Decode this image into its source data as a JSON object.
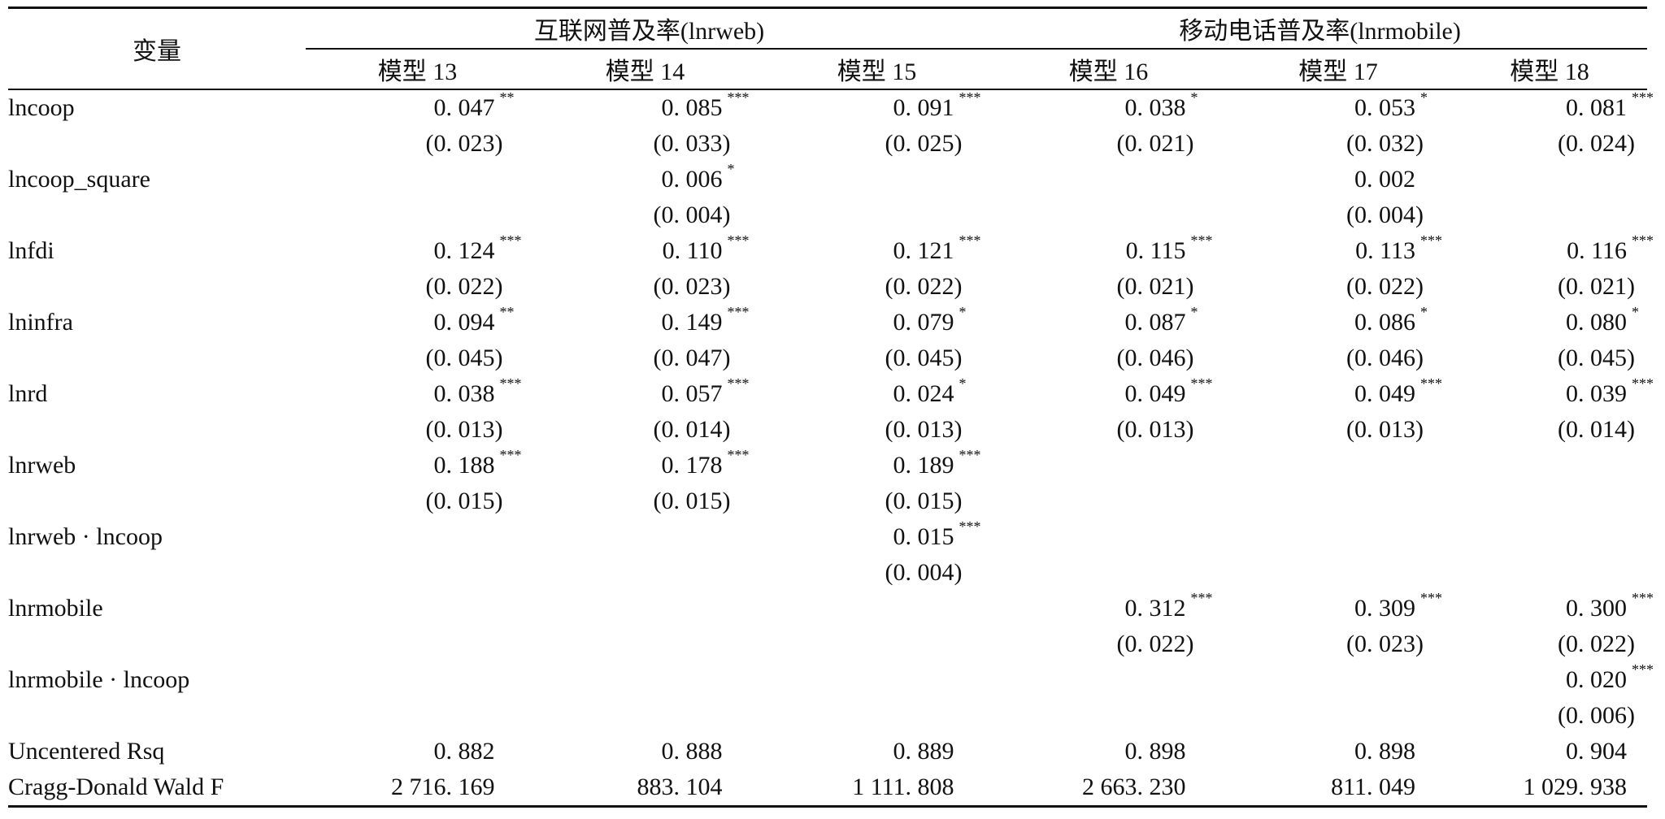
{
  "table": {
    "variable_header": "变量",
    "groups": [
      {
        "label": "互联网普及率(lnrweb)",
        "span": 3
      },
      {
        "label": "移动电话普及率(lnrmobile)",
        "span": 3
      }
    ],
    "models": [
      "模型 13",
      "模型 14",
      "模型 15",
      "模型 16",
      "模型 17",
      "模型 18"
    ],
    "rows": [
      {
        "name": "lncoop",
        "coef": [
          "0. 047",
          "0. 085",
          "0. 091",
          "0. 038",
          "0. 053",
          "0. 081"
        ],
        "stars": [
          "**",
          "***",
          "***",
          "*",
          "*",
          "***"
        ],
        "se": [
          "(0. 023)",
          "(0. 033)",
          "(0. 025)",
          "(0. 021)",
          "(0. 032)",
          "(0. 024)"
        ]
      },
      {
        "name": "lncoop_square",
        "coef": [
          "",
          "0. 006",
          "",
          "",
          "0. 002",
          ""
        ],
        "stars": [
          "",
          "*",
          "",
          "",
          "",
          ""
        ],
        "se": [
          "",
          "(0. 004)",
          "",
          "",
          "(0. 004)",
          ""
        ]
      },
      {
        "name": "lnfdi",
        "coef": [
          "0. 124",
          "0. 110",
          "0. 121",
          "0. 115",
          "0. 113",
          "0. 116"
        ],
        "stars": [
          "***",
          "***",
          "***",
          "***",
          "***",
          "***"
        ],
        "se": [
          "(0. 022)",
          "(0. 023)",
          "(0. 022)",
          "(0. 021)",
          "(0. 022)",
          "(0. 021)"
        ]
      },
      {
        "name": "lninfra",
        "coef": [
          "0. 094",
          "0. 149",
          "0. 079",
          "0. 087",
          "0. 086",
          "0. 080"
        ],
        "stars": [
          "**",
          "***",
          "*",
          "*",
          "*",
          "*"
        ],
        "se": [
          "(0. 045)",
          "(0. 047)",
          "(0. 045)",
          "(0. 046)",
          "(0. 046)",
          "(0. 045)"
        ]
      },
      {
        "name": "lnrd",
        "coef": [
          "0. 038",
          "0. 057",
          "0. 024",
          "0. 049",
          "0. 049",
          "0. 039"
        ],
        "stars": [
          "***",
          "***",
          "*",
          "***",
          "***",
          "***"
        ],
        "se": [
          "(0. 013)",
          "(0. 014)",
          "(0. 013)",
          "(0. 013)",
          "(0. 013)",
          "(0. 014)"
        ]
      },
      {
        "name": "lnrweb",
        "coef": [
          "0. 188",
          "0. 178",
          "0. 189",
          "",
          "",
          ""
        ],
        "stars": [
          "***",
          "***",
          "***",
          "",
          "",
          ""
        ],
        "se": [
          "(0. 015)",
          "(0. 015)",
          "(0. 015)",
          "",
          "",
          ""
        ]
      },
      {
        "name": "lnrweb · lncoop",
        "coef": [
          "",
          "",
          "0. 015",
          "",
          "",
          ""
        ],
        "stars": [
          "",
          "",
          "***",
          "",
          "",
          ""
        ],
        "se": [
          "",
          "",
          "(0. 004)",
          "",
          "",
          ""
        ]
      },
      {
        "name": "lnrmobile",
        "coef": [
          "",
          "",
          "",
          "0. 312",
          "0. 309",
          "0. 300"
        ],
        "stars": [
          "",
          "",
          "",
          "***",
          "***",
          "***"
        ],
        "se": [
          "",
          "",
          "",
          "(0. 022)",
          "(0. 023)",
          "(0. 022)"
        ]
      },
      {
        "name": "lnrmobile · lncoop",
        "coef": [
          "",
          "",
          "",
          "",
          "",
          "0. 020"
        ],
        "stars": [
          "",
          "",
          "",
          "",
          "",
          "***"
        ],
        "se": [
          "",
          "",
          "",
          "",
          "",
          "(0. 006)"
        ]
      }
    ],
    "stats": [
      {
        "name": "Uncentered Rsq",
        "values": [
          "0. 882",
          "0. 888",
          "0. 889",
          "0. 898",
          "0. 898",
          "0. 904"
        ]
      },
      {
        "name": "Cragg-Donald Wald F",
        "values": [
          "2 716. 169",
          "883. 104",
          "1 111. 808",
          "2 663. 230",
          "811. 049",
          "1 029. 938"
        ]
      }
    ]
  }
}
